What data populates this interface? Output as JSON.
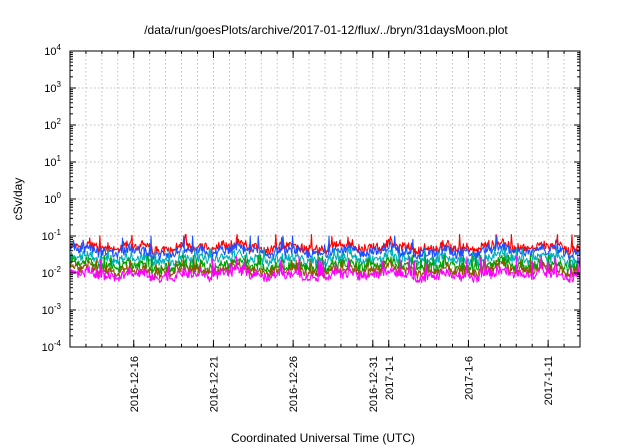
{
  "chart_data": {
    "type": "line",
    "title": "/data/run/goesPlots/archive/2017-01-12/flux/../bryn/31daysMoon.plot",
    "xlabel": "Coordinated Universal Time (UTC)",
    "ylabel": "cSv/day",
    "yscale": "log",
    "ylim": [
      0.0001,
      10000
    ],
    "xlim": [
      "2016-12-12",
      "2017-01-13"
    ],
    "grid": true,
    "y_ticks": [
      {
        "value": 0.0001,
        "base": "10",
        "exp": "-4"
      },
      {
        "value": 0.001,
        "base": "10",
        "exp": "-3"
      },
      {
        "value": 0.01,
        "base": "10",
        "exp": "-2"
      },
      {
        "value": 0.1,
        "base": "10",
        "exp": "-1"
      },
      {
        "value": 1,
        "base": "10",
        "exp": "0"
      },
      {
        "value": 10,
        "base": "10",
        "exp": "1"
      },
      {
        "value": 100,
        "base": "10",
        "exp": "2"
      },
      {
        "value": 1000,
        "base": "10",
        "exp": "3"
      },
      {
        "value": 10000,
        "base": "10",
        "exp": "4"
      }
    ],
    "x_ticks": [
      {
        "date": "2016-12-16",
        "label": "2016-12-16"
      },
      {
        "date": "2016-12-21",
        "label": "2016-12-21"
      },
      {
        "date": "2016-12-26",
        "label": "2016-12-26"
      },
      {
        "date": "2016-12-31",
        "label": "2016-12-31"
      },
      {
        "date": "2017-01-01",
        "label": "2017-1-1"
      },
      {
        "date": "2017-01-06",
        "label": "2017-1-6"
      },
      {
        "date": "2017-01-11",
        "label": "2017-1-11"
      }
    ],
    "series": [
      {
        "color": "#ff0000",
        "level": 0.05,
        "low": 0.032,
        "high": 0.11
      },
      {
        "color": "#1a50ff",
        "level": 0.038,
        "low": 0.022,
        "high": 0.1
      },
      {
        "color": "#00b0b8",
        "level": 0.024,
        "low": 0.012,
        "high": 0.045
      },
      {
        "color": "#00a000",
        "level": 0.016,
        "low": 0.009,
        "high": 0.03
      },
      {
        "color": "#8a5a00",
        "level": 0.012,
        "low": 0.007,
        "high": 0.022
      },
      {
        "color": "#ff00ff",
        "level": 0.009,
        "low": 0.0055,
        "high": 0.028
      }
    ]
  }
}
